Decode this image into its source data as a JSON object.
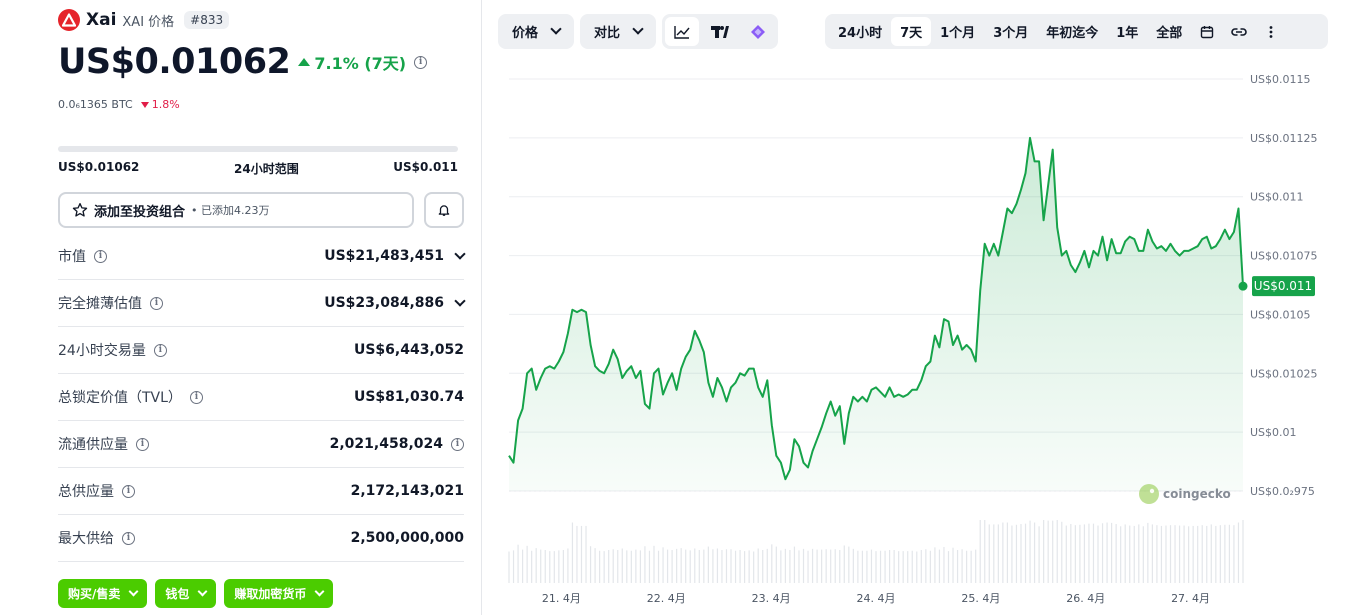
{
  "coin": {
    "name": "Xai",
    "subtitle": "XAI 价格",
    "rank": "#833",
    "price": "US$0.01062",
    "change": "7.1% (7天)",
    "btc_price": "0.0₆1365 BTC",
    "btc_change": "1.8%",
    "brand_color": "#e5242b"
  },
  "range": {
    "low": "US$0.01062",
    "label": "24小时范围",
    "high": "US$0.011"
  },
  "portfolio": {
    "label": "添加至投资组合",
    "added": "• 已添加4.23万"
  },
  "stats": [
    {
      "label": "市值",
      "value": "US$21,483,451",
      "dropdown": true
    },
    {
      "label": "完全摊薄估值",
      "value": "US$23,084,886",
      "dropdown": true
    },
    {
      "label": "24小时交易量",
      "value": "US$6,443,052",
      "dropdown": false
    },
    {
      "label": "总锁定价值（TVL）",
      "value": "US$81,030.74",
      "dropdown": false
    },
    {
      "label": "流通供应量",
      "value": "2,021,458,024",
      "dropdown": false,
      "info_after": true
    },
    {
      "label": "总供应量",
      "value": "2,172,143,021",
      "dropdown": false
    },
    {
      "label": "最大供给",
      "value": "2,500,000,000",
      "dropdown": false
    }
  ],
  "actions": {
    "buy_sell": "购买/售卖",
    "wallet": "钱包",
    "earn": "赚取加密货币",
    "color": "#4bcc00"
  },
  "toolbar": {
    "price_tab": "价格",
    "compare_tab": "对比",
    "ranges": [
      "24小时",
      "7天",
      "1个月",
      "3个月",
      "年初迄今",
      "1年",
      "全部"
    ],
    "active_range": "7天"
  },
  "chart_data": {
    "type": "line",
    "line_color": "#16a34a",
    "y_ticks": [
      "US$0.0115",
      "US$0.01125",
      "US$0.011",
      "US$0.01075",
      "US$0.0105",
      "US$0.01025",
      "US$0.01",
      "US$0.0₂975"
    ],
    "y_tick_values": [
      0.0115,
      0.01125,
      0.011,
      0.01075,
      0.0105,
      0.01025,
      0.01,
      0.00975
    ],
    "ylim": [
      0.00975,
      0.0115
    ],
    "x_ticks": [
      "21. 4月",
      "22. 4月",
      "23. 4月",
      "24. 4月",
      "25. 4月",
      "26. 4月",
      "27. 4月"
    ],
    "x_tick_pos": [
      0.5,
      1.5,
      2.5,
      3.5,
      4.5,
      5.5,
      6.5
    ],
    "xlim": [
      0,
      7
    ],
    "current_price_label": "US$0.011",
    "watermark": "coingecko",
    "series": [
      {
        "values": [
          0.0099,
          0.00987,
          0.01005,
          0.0101,
          0.01025,
          0.01027,
          0.01018,
          0.01023,
          0.01027,
          0.01028,
          0.01027,
          0.0103,
          0.01034,
          0.01042,
          0.01052,
          0.01051,
          0.01052,
          0.01051,
          0.01037,
          0.01028,
          0.01026,
          0.01025,
          0.01029,
          0.01035,
          0.01031,
          0.01023,
          0.01026,
          0.01028,
          0.01023,
          0.01026,
          0.01012,
          0.0101,
          0.01025,
          0.01027,
          0.01016,
          0.01021,
          0.01025,
          0.01018,
          0.01027,
          0.01032,
          0.01035,
          0.01043,
          0.01039,
          0.01034,
          0.01021,
          0.01015,
          0.01023,
          0.01019,
          0.01013,
          0.01019,
          0.01021,
          0.01025,
          0.01024,
          0.01027,
          0.01027,
          0.01019,
          0.01015,
          0.01022,
          0.01003,
          0.0099,
          0.00987,
          0.0098,
          0.00984,
          0.00997,
          0.00994,
          0.00987,
          0.00985,
          0.00992,
          0.00997,
          0.01002,
          0.01008,
          0.01013,
          0.01007,
          0.01011,
          0.00995,
          0.01008,
          0.01015,
          0.01013,
          0.01015,
          0.01013,
          0.01018,
          0.01019,
          0.01017,
          0.01015,
          0.01019,
          0.01015,
          0.01016,
          0.01015,
          0.01016,
          0.01018,
          0.01018,
          0.01022,
          0.01028,
          0.0103,
          0.01041,
          0.01036,
          0.01048,
          0.01047,
          0.01037,
          0.01041,
          0.01035,
          0.01037,
          0.01035,
          0.0103,
          0.0106,
          0.0108,
          0.01075,
          0.0108,
          0.01075,
          0.01085,
          0.01095,
          0.01093,
          0.01097,
          0.01103,
          0.0111,
          0.01125,
          0.01115,
          0.01115,
          0.0109,
          0.01105,
          0.0112,
          0.01087,
          0.01075,
          0.01077,
          0.01071,
          0.01068,
          0.01072,
          0.01077,
          0.0107,
          0.01077,
          0.01075,
          0.01083,
          0.01073,
          0.01082,
          0.01076,
          0.01076,
          0.01081,
          0.01083,
          0.01082,
          0.01077,
          0.01077,
          0.01086,
          0.01081,
          0.01078,
          0.01079,
          0.01077,
          0.0108,
          0.01077,
          0.01075,
          0.01077,
          0.01077,
          0.01078,
          0.01079,
          0.01082,
          0.01083,
          0.01078,
          0.01079,
          0.01082,
          0.01086,
          0.01082,
          0.01085,
          0.01095,
          0.01062
        ]
      }
    ]
  }
}
